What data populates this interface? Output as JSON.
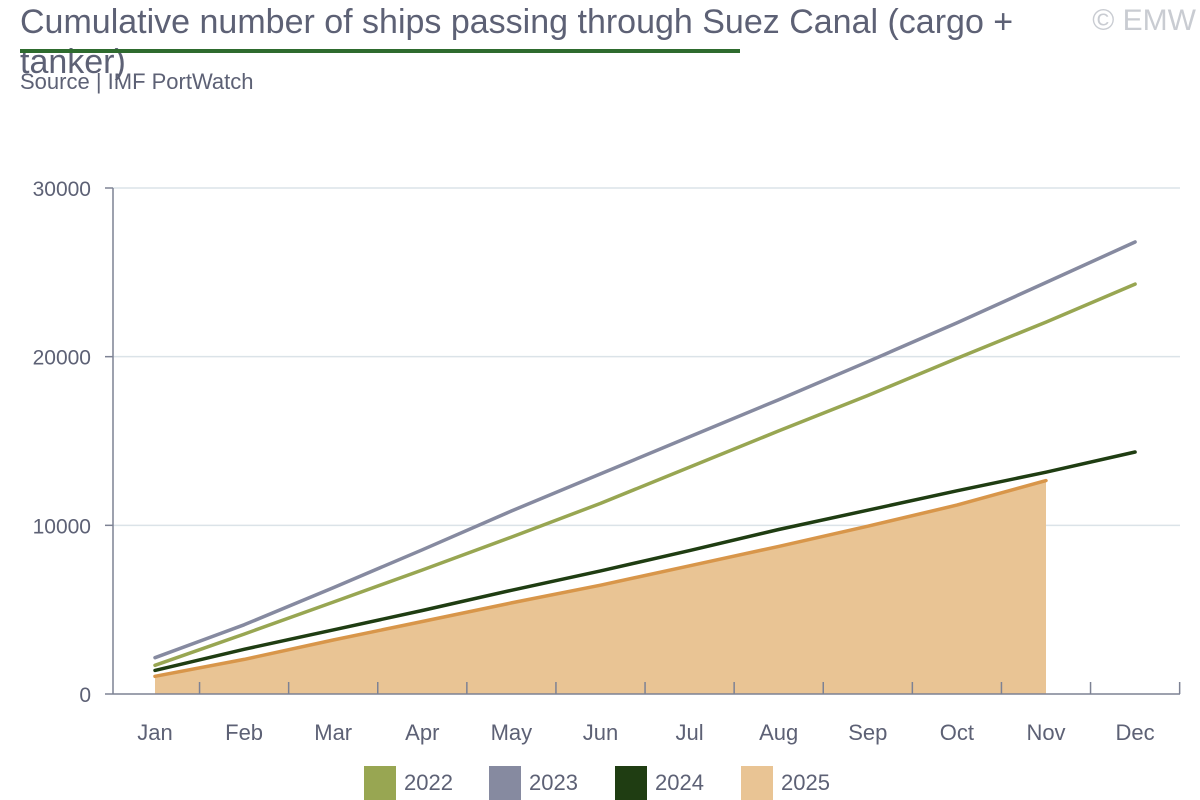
{
  "header": {
    "title": "Cumulative number of ships passing through Suez Canal (cargo + tanker)",
    "subtitle": "Source | IMF PortWatch",
    "watermark": "© EMW"
  },
  "colors": {
    "grid": "#dbe3e8",
    "axis": "#7d8294",
    "text": "#5d6175",
    "title_rule": "#2e6b2e"
  },
  "chart_data": {
    "type": "line",
    "title": "Cumulative number of ships passing through Suez Canal (cargo + tanker)",
    "subtitle": "Source | IMF PortWatch",
    "categories": [
      "Jan",
      "Feb",
      "Mar",
      "Apr",
      "May",
      "Jun",
      "Jul",
      "Aug",
      "Sep",
      "Oct",
      "Nov",
      "Dec"
    ],
    "ylim": [
      0,
      30000
    ],
    "yticks": [
      0,
      10000,
      20000,
      30000
    ],
    "ytick_labels": [
      "0",
      "10000",
      "20000",
      "30000"
    ],
    "grid": true,
    "legend_position": "bottom",
    "series": [
      {
        "name": "2022",
        "color": "#98a652",
        "style": "line",
        "values": [
          1700,
          3550,
          5450,
          7350,
          9300,
          11300,
          13450,
          15600,
          17700,
          19900,
          22050,
          24300
        ]
      },
      {
        "name": "2023",
        "color": "#868aa0",
        "style": "line",
        "values": [
          2150,
          4100,
          6300,
          8550,
          10850,
          13050,
          15250,
          17450,
          19700,
          22000,
          24400,
          26800
        ]
      },
      {
        "name": "2024",
        "color": "#1f3d12",
        "style": "line",
        "values": [
          1400,
          2650,
          3800,
          4950,
          6150,
          7300,
          8500,
          9750,
          10900,
          12050,
          13150,
          14350
        ]
      },
      {
        "name": "2025",
        "color": "#e9c494",
        "line_color": "#d8964a",
        "style": "area",
        "values": [
          1050,
          2050,
          3200,
          4300,
          5400,
          6450,
          7600,
          8750,
          9950,
          11200,
          12650,
          null
        ]
      }
    ]
  }
}
